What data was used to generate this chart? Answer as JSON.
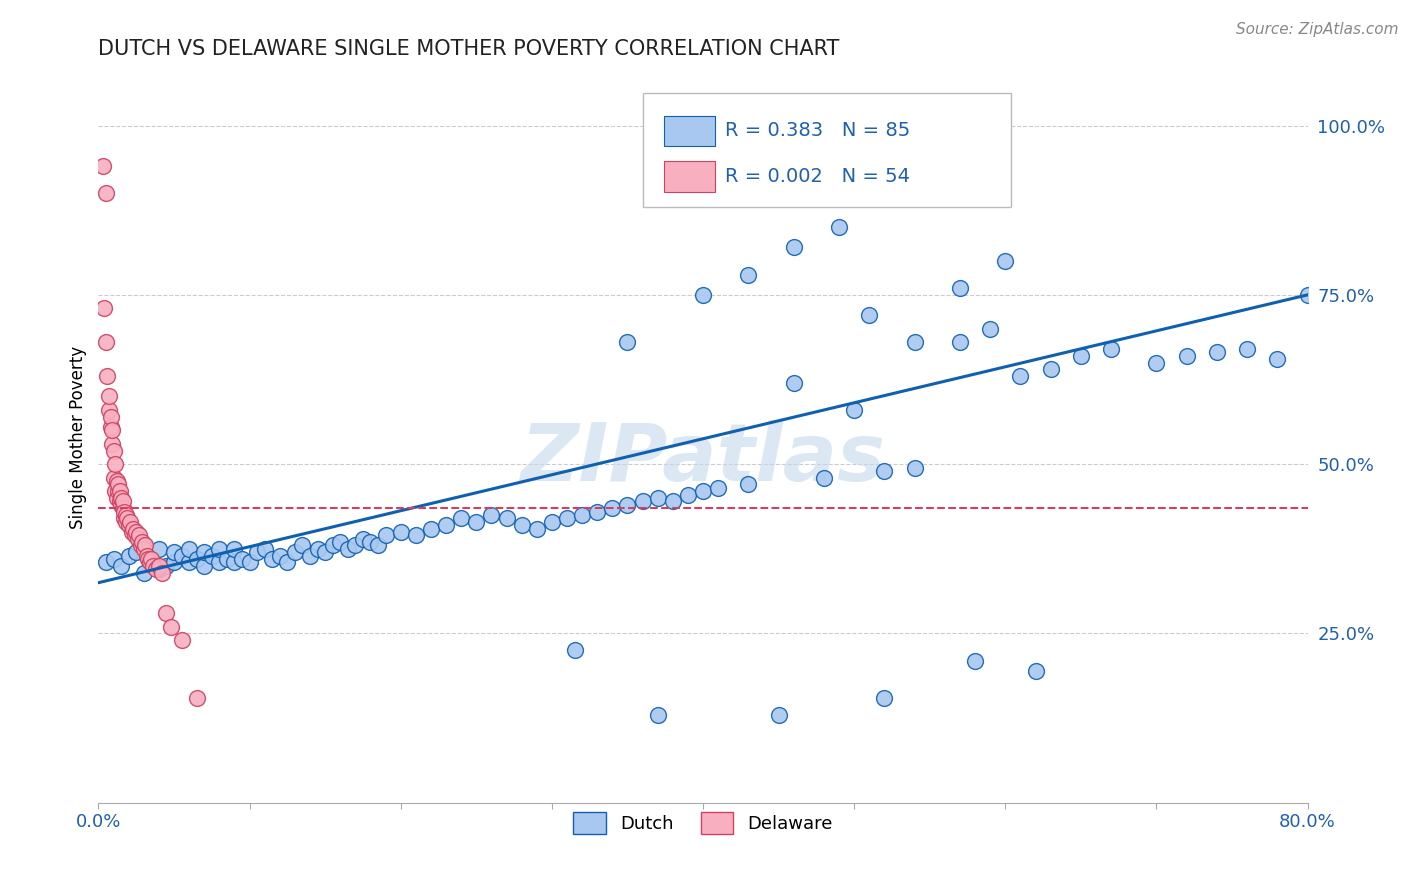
{
  "title": "DUTCH VS DELAWARE SINGLE MOTHER POVERTY CORRELATION CHART",
  "source": "Source: ZipAtlas.com",
  "ylabel": "Single Mother Poverty",
  "ytick_labels": [
    "100.0%",
    "75.0%",
    "50.0%",
    "25.0%"
  ],
  "ytick_values": [
    1.0,
    0.75,
    0.5,
    0.25
  ],
  "xlim": [
    0.0,
    0.8
  ],
  "ylim": [
    0.0,
    1.08
  ],
  "legend_R_dutch": "R = 0.383",
  "legend_N_dutch": "N = 85",
  "legend_R_delaware": "R = 0.002",
  "legend_N_delaware": "N = 54",
  "dutch_color": "#a8c8f0",
  "delaware_color": "#f8b0c0",
  "dutch_line_color": "#1060b0",
  "delaware_line_color": "#d04060",
  "watermark": "ZIPatlas",
  "watermark_color": "#c5d8ee",
  "dutch_x": [
    0.005,
    0.01,
    0.015,
    0.02,
    0.025,
    0.03,
    0.03,
    0.035,
    0.04,
    0.04,
    0.045,
    0.05,
    0.05,
    0.055,
    0.06,
    0.06,
    0.065,
    0.07,
    0.07,
    0.075,
    0.08,
    0.08,
    0.085,
    0.09,
    0.09,
    0.095,
    0.1,
    0.105,
    0.11,
    0.115,
    0.12,
    0.125,
    0.13,
    0.135,
    0.14,
    0.145,
    0.15,
    0.155,
    0.16,
    0.165,
    0.17,
    0.175,
    0.18,
    0.185,
    0.19,
    0.2,
    0.21,
    0.22,
    0.23,
    0.24,
    0.25,
    0.26,
    0.27,
    0.28,
    0.29,
    0.3,
    0.31,
    0.32,
    0.33,
    0.34,
    0.35,
    0.36,
    0.37,
    0.38,
    0.39,
    0.4,
    0.41,
    0.43,
    0.46,
    0.48,
    0.5,
    0.52,
    0.54,
    0.57,
    0.59,
    0.61,
    0.63,
    0.65,
    0.67,
    0.7,
    0.72,
    0.74,
    0.76,
    0.78,
    0.8
  ],
  "dutch_y": [
    0.355,
    0.36,
    0.35,
    0.365,
    0.37,
    0.34,
    0.38,
    0.355,
    0.345,
    0.375,
    0.35,
    0.355,
    0.37,
    0.365,
    0.355,
    0.375,
    0.36,
    0.35,
    0.37,
    0.365,
    0.355,
    0.375,
    0.36,
    0.355,
    0.375,
    0.36,
    0.355,
    0.37,
    0.375,
    0.36,
    0.365,
    0.355,
    0.37,
    0.38,
    0.365,
    0.375,
    0.37,
    0.38,
    0.385,
    0.375,
    0.38,
    0.39,
    0.385,
    0.38,
    0.395,
    0.4,
    0.395,
    0.405,
    0.41,
    0.42,
    0.415,
    0.425,
    0.42,
    0.41,
    0.405,
    0.415,
    0.42,
    0.425,
    0.43,
    0.435,
    0.44,
    0.445,
    0.45,
    0.445,
    0.455,
    0.46,
    0.465,
    0.47,
    0.62,
    0.48,
    0.58,
    0.49,
    0.495,
    0.68,
    0.7,
    0.63,
    0.64,
    0.66,
    0.67,
    0.65,
    0.66,
    0.665,
    0.67,
    0.655,
    0.75
  ],
  "dutch_outliers_x": [
    0.315,
    0.37,
    0.45,
    0.52,
    0.58,
    0.62
  ],
  "dutch_outliers_y": [
    0.225,
    0.13,
    0.13,
    0.155,
    0.21,
    0.195
  ],
  "dutch_high_x": [
    0.35,
    0.4,
    0.43,
    0.46,
    0.49,
    0.51,
    0.54,
    0.57,
    0.6
  ],
  "dutch_high_y": [
    0.68,
    0.75,
    0.78,
    0.82,
    0.85,
    0.72,
    0.68,
    0.76,
    0.8
  ],
  "delaware_x": [
    0.003,
    0.004,
    0.005,
    0.005,
    0.006,
    0.007,
    0.007,
    0.008,
    0.008,
    0.009,
    0.009,
    0.01,
    0.01,
    0.011,
    0.011,
    0.012,
    0.012,
    0.013,
    0.013,
    0.014,
    0.014,
    0.015,
    0.015,
    0.016,
    0.016,
    0.017,
    0.017,
    0.018,
    0.018,
    0.019,
    0.02,
    0.021,
    0.022,
    0.023,
    0.024,
    0.025,
    0.026,
    0.027,
    0.028,
    0.029,
    0.03,
    0.031,
    0.032,
    0.033,
    0.034,
    0.035,
    0.036,
    0.038,
    0.04,
    0.042,
    0.045,
    0.048,
    0.055,
    0.065
  ],
  "delaware_y": [
    0.94,
    0.73,
    0.68,
    0.9,
    0.63,
    0.58,
    0.6,
    0.555,
    0.57,
    0.53,
    0.55,
    0.52,
    0.48,
    0.5,
    0.46,
    0.475,
    0.45,
    0.46,
    0.47,
    0.445,
    0.46,
    0.44,
    0.45,
    0.435,
    0.445,
    0.42,
    0.43,
    0.415,
    0.425,
    0.42,
    0.41,
    0.415,
    0.4,
    0.405,
    0.395,
    0.4,
    0.39,
    0.395,
    0.38,
    0.385,
    0.375,
    0.38,
    0.365,
    0.36,
    0.355,
    0.36,
    0.35,
    0.345,
    0.35,
    0.34,
    0.28,
    0.26,
    0.24,
    0.155
  ],
  "trend_dutch_x0": 0.0,
  "trend_dutch_x1": 0.8,
  "trend_dutch_y0": 0.325,
  "trend_dutch_y1": 0.75,
  "trend_del_x0": 0.0,
  "trend_del_x1": 0.8,
  "trend_del_y0": 0.435,
  "trend_del_y1": 0.435
}
